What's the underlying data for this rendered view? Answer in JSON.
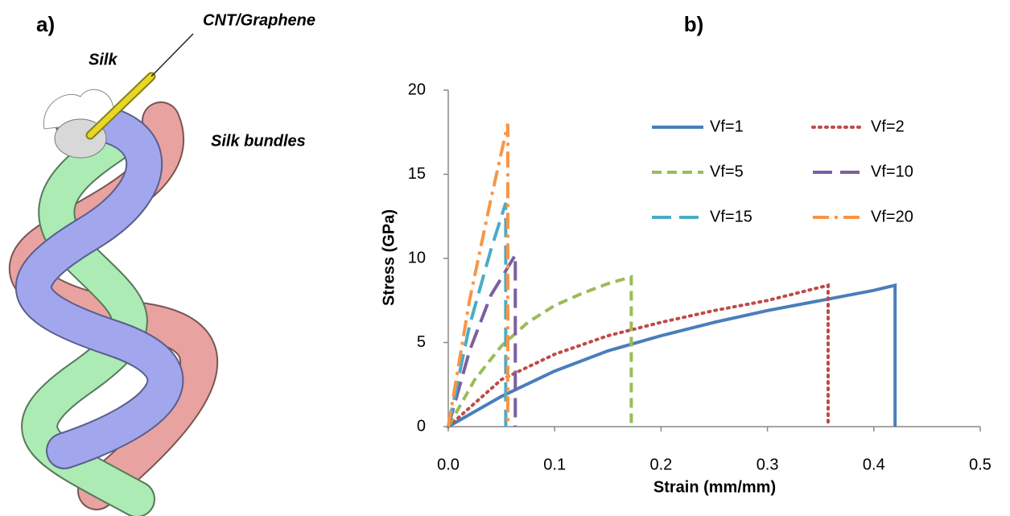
{
  "panel_a": {
    "label": "a)",
    "annotations": [
      "CNT/Graphene",
      "Silk",
      "Silk bundles"
    ]
  },
  "chart_data": {
    "type": "line",
    "panel_label": "b)",
    "x_label": "Strain (mm/mm)",
    "y_label": "Stress (GPa)",
    "xlim": [
      0,
      0.5
    ],
    "xticks": [
      {
        "value": 0,
        "label": "0.0"
      },
      0.1,
      0.2,
      0.3,
      0.4,
      0.5
    ],
    "ylim": [
      0,
      20
    ],
    "yticks": [
      0,
      5,
      10,
      15,
      20
    ],
    "legend_columns": 2,
    "series": [
      {
        "name": "Vf=1",
        "color": "#4a7ebb",
        "dash": "solid",
        "x": [
          0,
          0.05,
          0.1,
          0.15,
          0.2,
          0.25,
          0.3,
          0.35,
          0.4,
          0.42,
          0.42
        ],
        "values": [
          0,
          1.8,
          3.3,
          4.5,
          5.4,
          6.2,
          6.9,
          7.5,
          8.1,
          8.4,
          0
        ]
      },
      {
        "name": "Vf=2",
        "color": "#be4b48",
        "dash": "dotted",
        "x": [
          0,
          0.05,
          0.1,
          0.15,
          0.2,
          0.25,
          0.3,
          0.357,
          0.357
        ],
        "values": [
          0,
          2.8,
          4.3,
          5.4,
          6.2,
          6.9,
          7.5,
          8.4,
          0
        ]
      },
      {
        "name": "Vf=5",
        "color": "#9bbb59",
        "dash": "dashed",
        "x": [
          0,
          0.025,
          0.05,
          0.075,
          0.1,
          0.125,
          0.15,
          0.172,
          0.172
        ],
        "values": [
          0,
          2.8,
          4.8,
          6.2,
          7.2,
          7.9,
          8.5,
          8.9,
          0
        ]
      },
      {
        "name": "Vf=10",
        "color": "#7d5fa0",
        "dash": "long-dash",
        "x": [
          0,
          0.02,
          0.04,
          0.063,
          0.063
        ],
        "values": [
          0,
          4.5,
          7.8,
          10.2,
          0
        ]
      },
      {
        "name": "Vf=15",
        "color": "#4bacc6",
        "dash": "long-dash",
        "x": [
          0,
          0.02,
          0.04,
          0.054,
          0.054
        ],
        "values": [
          0,
          6,
          10.5,
          13.3,
          0
        ]
      },
      {
        "name": "Vf=20",
        "color": "#f79646",
        "dash": "dash-dot",
        "x": [
          0,
          0.02,
          0.04,
          0.056,
          0.056
        ],
        "values": [
          0,
          7.5,
          13.5,
          18,
          0
        ]
      }
    ]
  }
}
